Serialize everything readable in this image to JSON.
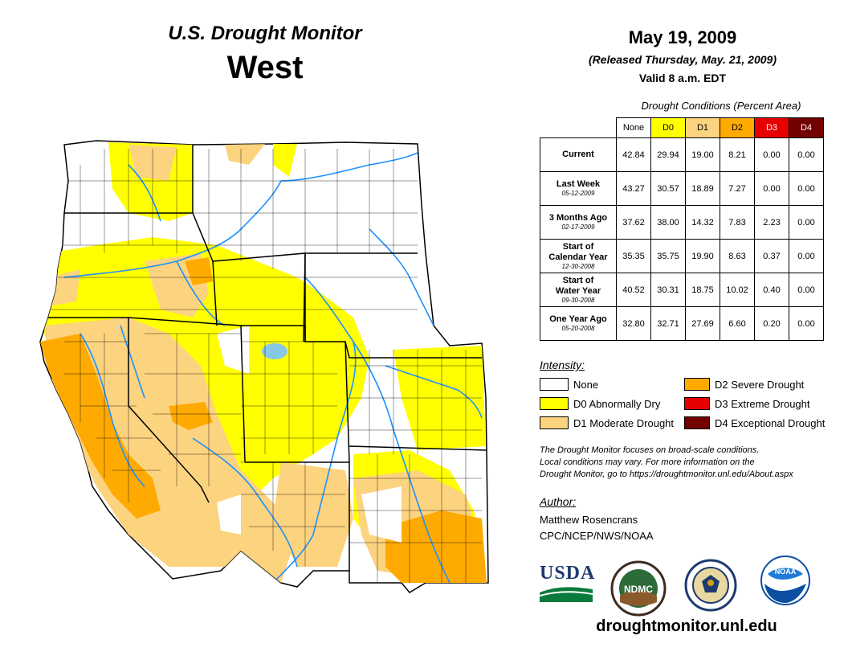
{
  "header": {
    "title": "U.S. Drought Monitor",
    "region": "West",
    "date": "May 19, 2009",
    "released": "(Released Thursday, May. 21, 2009)",
    "valid": "Valid 8 a.m. EDT"
  },
  "table": {
    "caption": "Drought Conditions (Percent Area)",
    "columns": [
      "None",
      "D0",
      "D1",
      "D2",
      "D3",
      "D4"
    ],
    "rows": [
      {
        "label": "Current",
        "sub": "",
        "values": [
          "42.84",
          "29.94",
          "19.00",
          "8.21",
          "0.00",
          "0.00"
        ]
      },
      {
        "label": "Last Week",
        "sub": "05-12-2009",
        "values": [
          "43.27",
          "30.57",
          "18.89",
          "7.27",
          "0.00",
          "0.00"
        ]
      },
      {
        "label": "3 Months Ago",
        "sub": "02-17-2009",
        "values": [
          "37.62",
          "38.00",
          "14.32",
          "7.83",
          "2.23",
          "0.00"
        ]
      },
      {
        "label_line1": "Start of",
        "label_line2": "Calendar Year",
        "sub": "12-30-2008",
        "values": [
          "35.35",
          "35.75",
          "19.90",
          "8.63",
          "0.37",
          "0.00"
        ]
      },
      {
        "label_line1": "Start of",
        "label_line2": "Water Year",
        "sub": "09-30-2008",
        "values": [
          "40.52",
          "30.31",
          "18.75",
          "10.02",
          "0.40",
          "0.00"
        ]
      },
      {
        "label": "One Year Ago",
        "sub": "05-20-2008",
        "values": [
          "32.80",
          "32.71",
          "27.69",
          "6.60",
          "0.20",
          "0.00"
        ]
      }
    ]
  },
  "legend": {
    "title": "Intensity:",
    "items": [
      {
        "label": "None",
        "color": "#ffffff"
      },
      {
        "label": "D0 Abnormally Dry",
        "color": "#ffff00"
      },
      {
        "label": "D1 Moderate Drought",
        "color": "#fcd37f"
      },
      {
        "label": "D2 Severe Drought",
        "color": "#ffaa00"
      },
      {
        "label": "D3 Extreme Drought",
        "color": "#e60000"
      },
      {
        "label": "D4 Exceptional Drought",
        "color": "#730000"
      }
    ]
  },
  "note": {
    "line1": "The Drought Monitor focuses on broad-scale conditions.",
    "line2": "Local conditions may vary. For more information on the",
    "line3": "Drought Monitor, go to https://droughtmonitor.unl.edu/About.aspx"
  },
  "author": {
    "title": "Author:",
    "name": "Matthew Rosencrans",
    "org": "CPC/NCEP/NWS/NOAA"
  },
  "logos": {
    "usda": "USDA",
    "ndmc": "NDMC",
    "noaa": "NOAA"
  },
  "footer": {
    "url": "droughtmonitor.unl.edu"
  },
  "colors": {
    "none": "#ffffff",
    "d0": "#ffff00",
    "d1": "#fcd37f",
    "d2": "#ffaa00",
    "d3": "#e60000",
    "d4": "#730000",
    "river": "#1e90ff",
    "lake": "#87c8e8"
  }
}
